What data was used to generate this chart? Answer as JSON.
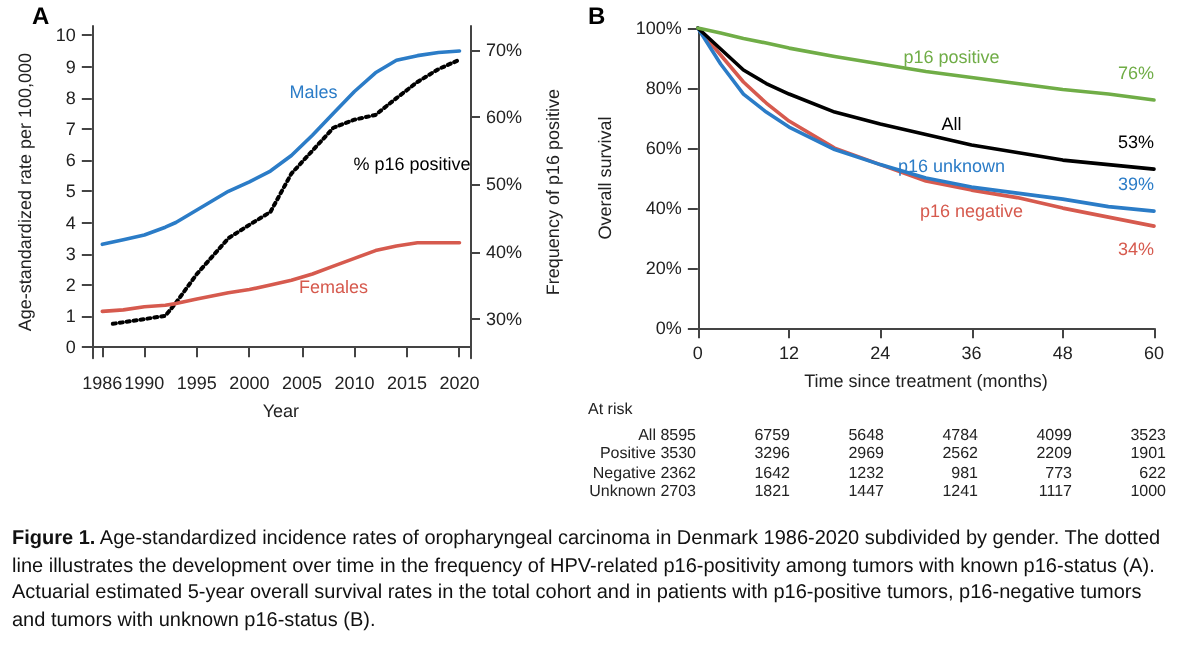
{
  "chart_data": [
    {
      "type": "line",
      "title": "A",
      "xlabel": "Year",
      "ylabel": "Age-standardized rate per 100,000",
      "y2label": "Frequency of p16 positive",
      "x": [
        1986,
        1988,
        1990,
        1992,
        1993,
        1995,
        1998,
        2000,
        2002,
        2004,
        2006,
        2008,
        2010,
        2012,
        2014,
        2016,
        2018,
        2020
      ],
      "xlim": [
        1985,
        2021
      ],
      "xticks": [
        1986,
        1990,
        1995,
        2000,
        2005,
        2010,
        2015,
        2020
      ],
      "ylim": [
        -0.35,
        10.3
      ],
      "yticks": [
        0,
        1,
        2,
        3,
        4,
        5,
        6,
        7,
        8,
        9,
        10
      ],
      "y2lim": [
        24.2,
        73.5
      ],
      "y2ticks": [
        {
          "value": 30,
          "label": "30%"
        },
        {
          "value": 40,
          "label": "40%"
        },
        {
          "value": 50,
          "label": "50%"
        },
        {
          "value": 60,
          "label": "60%"
        },
        {
          "value": 70,
          "label": "70%"
        }
      ],
      "series": [
        {
          "name": "Males",
          "color": "#2b7cc7",
          "values": [
            3.3,
            3.45,
            3.6,
            3.85,
            4.0,
            4.4,
            5.0,
            5.3,
            5.65,
            6.15,
            6.8,
            7.5,
            8.2,
            8.8,
            9.2,
            9.35,
            9.45,
            9.5
          ]
        },
        {
          "name": "Females",
          "color": "#d65a4e",
          "values": [
            1.15,
            1.2,
            1.3,
            1.35,
            1.4,
            1.55,
            1.75,
            1.85,
            2.0,
            2.15,
            2.35,
            2.6,
            2.85,
            3.1,
            3.25,
            3.35,
            3.35,
            3.35
          ]
        },
        {
          "name": "% p16 positive",
          "color": "#000000",
          "axis": "y2",
          "line_style": "dotted",
          "x": [
            1987,
            1990,
            1992,
            1993,
            1995,
            1998,
            2000,
            2002,
            2004,
            2006,
            2008,
            2010,
            2012,
            2014,
            2016,
            2018,
            2020
          ],
          "values": [
            29.3,
            30,
            30.5,
            32.4,
            36.7,
            42,
            44,
            45.9,
            51.6,
            55,
            58.4,
            59.6,
            60.3,
            62.8,
            65.2,
            67.1,
            68.5
          ]
        }
      ],
      "marker": "none",
      "legend": false,
      "grid": false,
      "annotations": [
        "Figure 1. Age-standardized incidence rates of oropharyngeal carcinoma in Denmark 1986-2020 subdivided by gender. The dotted line illustrates the development over time in the frequency of HPV-related p16-positivity among tumors with known p16-status (A). Actuarial estimated 5-year overall survival rates in the total cohort and in patients with p16-positive tumors, p16-negative tumors and tumors with unknown p16-status (B)."
      ]
    },
    {
      "type": "line",
      "title": "B",
      "xlabel": "Time since treatment (months)",
      "ylabel": "Overall survival",
      "x": [
        0,
        3,
        6,
        9,
        12,
        18,
        24,
        30,
        36,
        42,
        48,
        54,
        60
      ],
      "xlim": [
        0,
        60
      ],
      "xticks": [
        0,
        12,
        24,
        36,
        48,
        60
      ],
      "ylim": [
        0,
        100
      ],
      "yticks": [
        {
          "value": 0,
          "label": "0%"
        },
        {
          "value": 20,
          "label": "20%"
        },
        {
          "value": 40,
          "label": "40%"
        },
        {
          "value": 60,
          "label": "60%"
        },
        {
          "value": 80,
          "label": "80%"
        },
        {
          "value": 100,
          "label": "100%"
        }
      ],
      "series": [
        {
          "name": "p16 positive",
          "color": "#70ad47",
          "values": [
            100,
            98.3,
            96.5,
            95,
            93.3,
            90.5,
            88,
            85.5,
            83.5,
            81.5,
            79.5,
            78,
            76
          ],
          "value_labels": [
            null,
            null,
            null,
            null,
            null,
            null,
            null,
            null,
            null,
            null,
            null,
            null,
            "76%"
          ]
        },
        {
          "name": "All",
          "color": "#000000",
          "values": [
            100,
            93,
            86,
            81.5,
            78,
            72,
            68,
            64.5,
            61,
            58.5,
            56,
            54.5,
            53
          ],
          "value_labels": [
            null,
            null,
            null,
            null,
            null,
            null,
            null,
            null,
            null,
            null,
            null,
            null,
            "53%"
          ]
        },
        {
          "name": "p16 unknown",
          "color": "#2b7cc7",
          "values": [
            100,
            88,
            78,
            72,
            67,
            59.5,
            54.5,
            50,
            47,
            45,
            43,
            40.5,
            39
          ],
          "value_labels": [
            null,
            null,
            null,
            null,
            null,
            null,
            null,
            null,
            null,
            null,
            null,
            null,
            "39%"
          ]
        },
        {
          "name": "p16 negative",
          "color": "#d65a4e",
          "values": [
            100,
            91,
            82,
            75,
            69,
            60,
            54.5,
            49,
            46,
            43.5,
            40,
            37,
            34
          ],
          "value_labels": [
            null,
            null,
            null,
            null,
            null,
            null,
            null,
            null,
            null,
            null,
            null,
            null,
            "34%"
          ]
        }
      ],
      "marker": "none",
      "legend": false,
      "grid": false,
      "annotations": [
        "At risk",
        "All 8595 6759 5648 4784 4099 3523",
        "Positive 3530 3296 2969 2562 2209 1901",
        "Negative 2362 1642 1232 981 773 622",
        "Unknown 2703 1821 1447 1241 1117 1000"
      ]
    }
  ]
}
